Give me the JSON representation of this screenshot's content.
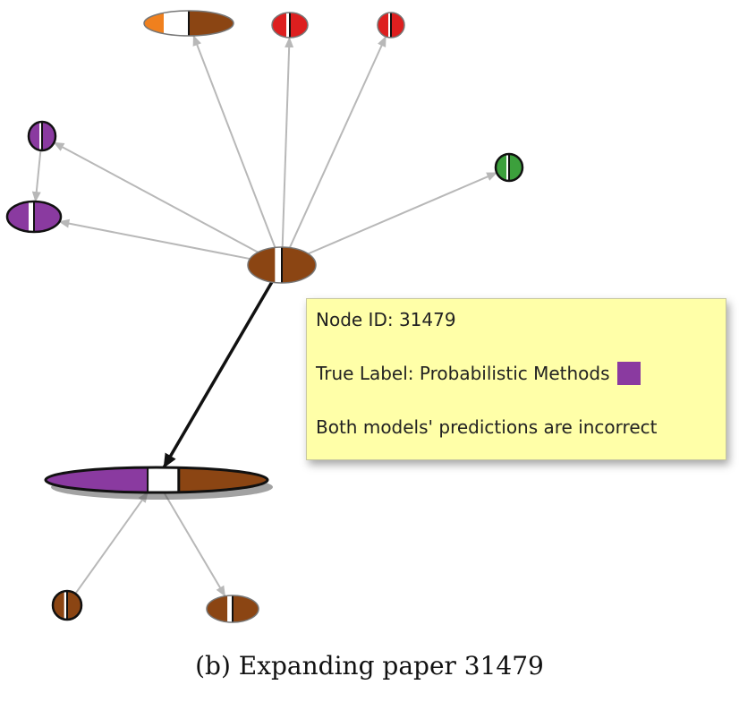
{
  "tooltip": {
    "node_id_line": "Node ID: 31479",
    "true_label_line": "True Label: Probabilistic Methods",
    "true_label_color": "#8a3aa0",
    "prediction_line": "Both models' predictions are incorrect"
  },
  "caption": "(b) Expanding paper 31479",
  "colors": {
    "brown": "#8b4513",
    "purple": "#8a3aa0",
    "red": "#dd1f1f",
    "orange": "#f0801e",
    "green": "#3ca03c",
    "edge": "#b8b8b8",
    "highlight_edge": "#111111"
  },
  "graph": {
    "nodes": [
      {
        "id": "center",
        "name": "node-center",
        "segments": [
          "brown",
          "white",
          "brown"
        ]
      },
      {
        "id": "expanded",
        "name": "node-31479-expanded",
        "segments": [
          "purple",
          "white",
          "brown"
        ]
      },
      {
        "id": "top-left",
        "name": "node-top-left",
        "segments": [
          "orange",
          "white",
          "brown"
        ]
      },
      {
        "id": "top-mid",
        "name": "node-top-middle",
        "segments": [
          "red",
          "white",
          "red"
        ]
      },
      {
        "id": "top-right",
        "name": "node-top-right",
        "segments": [
          "red",
          "white",
          "red"
        ]
      },
      {
        "id": "left-small",
        "name": "node-left-small",
        "segments": [
          "purple",
          "white",
          "purple"
        ]
      },
      {
        "id": "left-large",
        "name": "node-left-large",
        "segments": [
          "purple",
          "white",
          "purple"
        ]
      },
      {
        "id": "green",
        "name": "node-right-green",
        "segments": [
          "green",
          "white",
          "green"
        ]
      },
      {
        "id": "bottom-left",
        "name": "node-bottom-left",
        "segments": [
          "brown",
          "white",
          "brown"
        ]
      },
      {
        "id": "bottom-right",
        "name": "node-bottom-right",
        "segments": [
          "brown",
          "white",
          "brown"
        ]
      }
    ],
    "edges": [
      {
        "from": "center",
        "to": "top-left"
      },
      {
        "from": "center",
        "to": "top-mid"
      },
      {
        "from": "center",
        "to": "top-right"
      },
      {
        "from": "center",
        "to": "left-small"
      },
      {
        "from": "center",
        "to": "left-large"
      },
      {
        "from": "center",
        "to": "green"
      },
      {
        "from": "left-small",
        "to": "left-large"
      },
      {
        "from": "center",
        "to": "expanded",
        "highlight": true
      },
      {
        "from": "bottom-left",
        "to": "expanded"
      },
      {
        "from": "expanded",
        "to": "bottom-right"
      }
    ]
  }
}
